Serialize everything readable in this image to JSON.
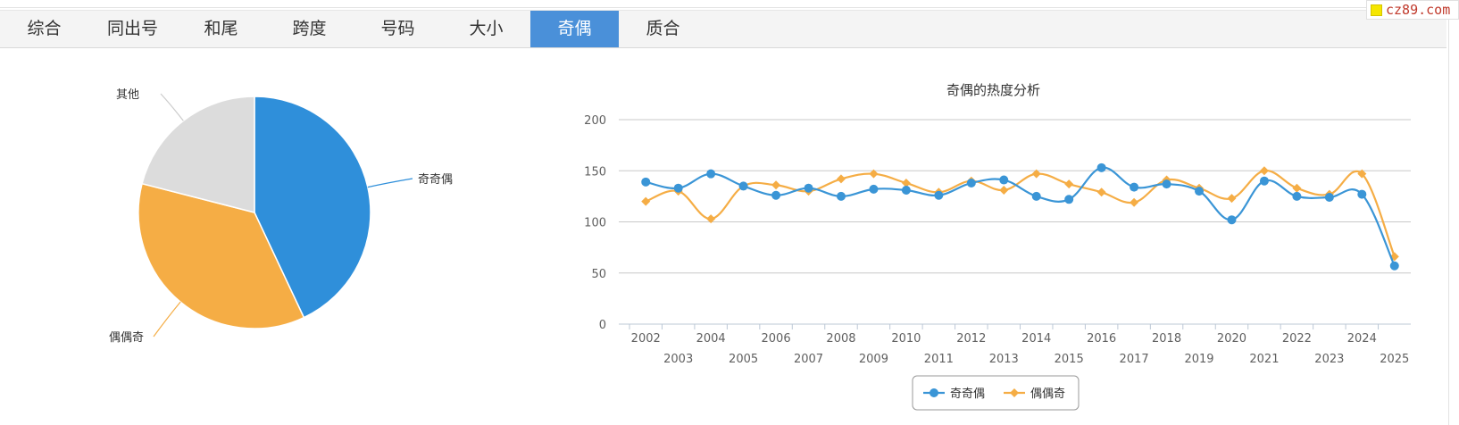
{
  "watermark": {
    "text": "cz89.com"
  },
  "tabs": [
    {
      "label": "综合"
    },
    {
      "label": "同出号"
    },
    {
      "label": "和尾"
    },
    {
      "label": "跨度"
    },
    {
      "label": "号码"
    },
    {
      "label": "大小"
    },
    {
      "label": "奇偶"
    },
    {
      "label": "质合"
    }
  ],
  "active_tab": 6,
  "chart_data": [
    {
      "type": "pie",
      "slices": [
        {
          "name": "奇奇偶",
          "value": 43,
          "color": "#2f8fda"
        },
        {
          "name": "偶偶奇",
          "value": 36,
          "color": "#f5ad45"
        },
        {
          "name": "其他",
          "value": 21,
          "color": "#dcdcdc"
        }
      ]
    },
    {
      "type": "line",
      "title": "奇偶的热度分析",
      "categories": [
        "2002",
        "2003",
        "2004",
        "2005",
        "2006",
        "2007",
        "2008",
        "2009",
        "2010",
        "2011",
        "2012",
        "2013",
        "2014",
        "2015",
        "2016",
        "2017",
        "2018",
        "2019",
        "2020",
        "2021",
        "2022",
        "2023",
        "2024",
        "2025"
      ],
      "series": [
        {
          "name": "奇奇偶",
          "color": "#3a95d6",
          "marker": "circle",
          "values": [
            139,
            133,
            147,
            135,
            126,
            133,
            125,
            132,
            131,
            126,
            138,
            141,
            125,
            122,
            153,
            134,
            137,
            130,
            102,
            140,
            125,
            124,
            127,
            57
          ]
        },
        {
          "name": "偶偶奇",
          "color": "#f5ad45",
          "marker": "diamond",
          "values": [
            120,
            130,
            103,
            135,
            136,
            130,
            142,
            147,
            138,
            129,
            140,
            131,
            147,
            137,
            129,
            119,
            141,
            133,
            123,
            150,
            133,
            127,
            147,
            66
          ]
        }
      ],
      "ylim": [
        0,
        200
      ],
      "yticks": [
        "0",
        "50",
        "100",
        "150",
        "200"
      ],
      "legend": "bottom-center"
    }
  ]
}
